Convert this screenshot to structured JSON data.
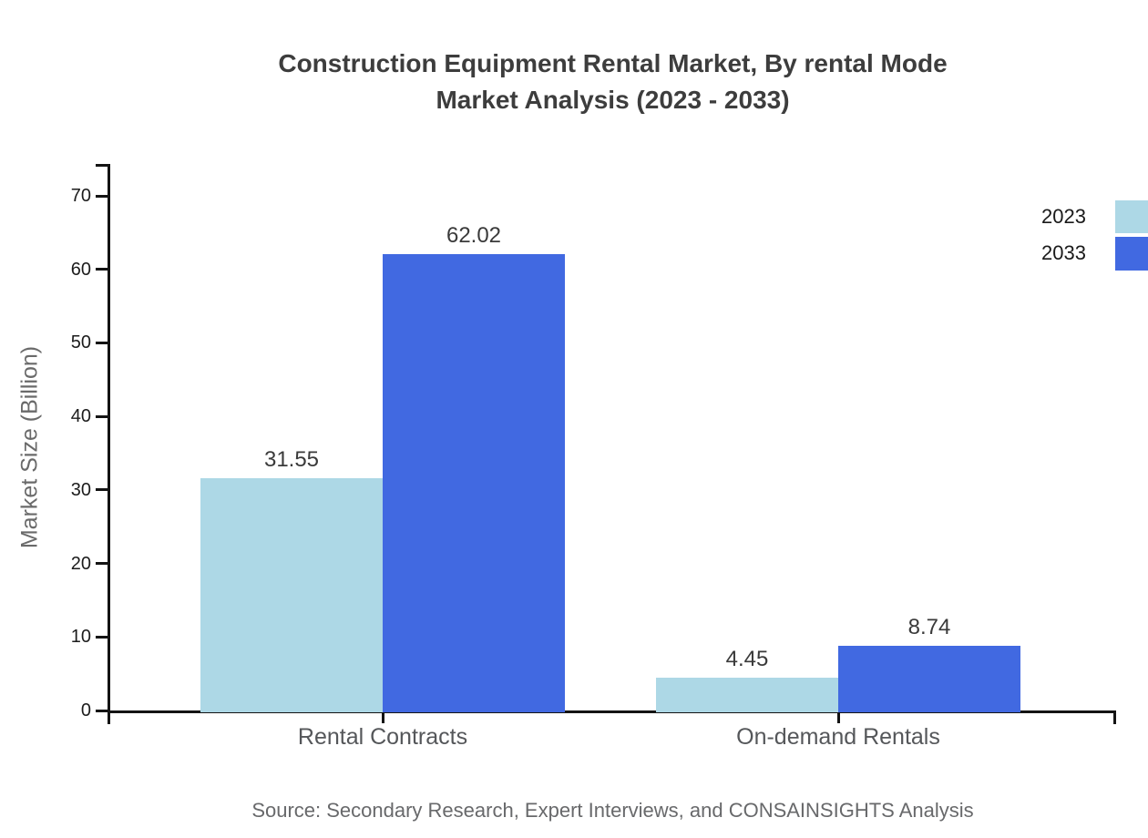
{
  "title": {
    "line1": "Construction Equipment Rental Market, By rental Mode",
    "line2": "Market Analysis (2023 - 2033)"
  },
  "source": "Source: Secondary Research, Expert Interviews, and CONSAINSIGHTS Analysis",
  "legend": [
    {
      "label": "2023",
      "color": "#ADD8E6"
    },
    {
      "label": "2033",
      "color": "#4169E1"
    }
  ],
  "chart_data": {
    "type": "bar",
    "title": "Construction Equipment Rental Market, By rental Mode Market Analysis (2023 - 2033)",
    "categories": [
      "Rental Contracts",
      "On-demand Rentals"
    ],
    "series": [
      {
        "name": "2023",
        "color": "#ADD8E6",
        "values": [
          31.55,
          4.45
        ]
      },
      {
        "name": "2033",
        "color": "#4169E1",
        "values": [
          62.02,
          8.74
        ]
      }
    ],
    "xlabel": "",
    "ylabel": "Market Size (Billion)",
    "ylim": [
      0,
      70
    ],
    "yticks": [
      0,
      10,
      20,
      30,
      40,
      50,
      60,
      70
    ],
    "grid": false,
    "value_labels": true,
    "legend_position": "top-right-edge"
  }
}
